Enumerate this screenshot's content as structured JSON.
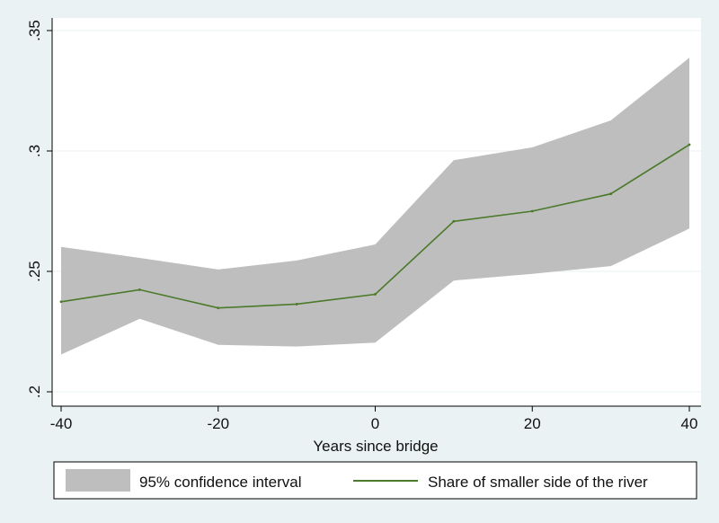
{
  "chart_data": {
    "type": "area",
    "title": "",
    "xlabel": "Years since bridge",
    "ylabel": "",
    "xlim": [
      -40,
      40
    ],
    "ylim": [
      0.2,
      0.35
    ],
    "x_ticks": [
      -40,
      -20,
      0,
      20,
      40
    ],
    "x_tick_labels": [
      "-40",
      "-20",
      "0",
      "20",
      "40"
    ],
    "y_ticks": [
      0.2,
      0.25,
      0.3,
      0.35
    ],
    "y_tick_labels": [
      ".2",
      ".25",
      ".3",
      ".35"
    ],
    "grid": true,
    "legend_position": "bottom",
    "x": [
      -40,
      -30,
      -20,
      -10,
      0,
      10,
      20,
      30,
      40
    ],
    "series": [
      {
        "name": "95% confidence interval",
        "kind": "band",
        "color": "#bebebe",
        "lower": [
          0.2155,
          0.2303,
          0.2195,
          0.2188,
          0.2204,
          0.2462,
          0.249,
          0.2522,
          0.2678
        ],
        "upper": [
          0.2602,
          0.2556,
          0.2508,
          0.2545,
          0.2612,
          0.2962,
          0.3015,
          0.3127,
          0.3387
        ]
      },
      {
        "name": "Share of smaller side of the river",
        "kind": "line",
        "color": "#4b7a2a",
        "values": [
          0.2374,
          0.2424,
          0.2348,
          0.2364,
          0.2405,
          0.2708,
          0.275,
          0.2822,
          0.3026
        ]
      }
    ],
    "legend": [
      {
        "label": "95% confidence interval"
      },
      {
        "label": "Share of smaller side of the river"
      }
    ]
  }
}
